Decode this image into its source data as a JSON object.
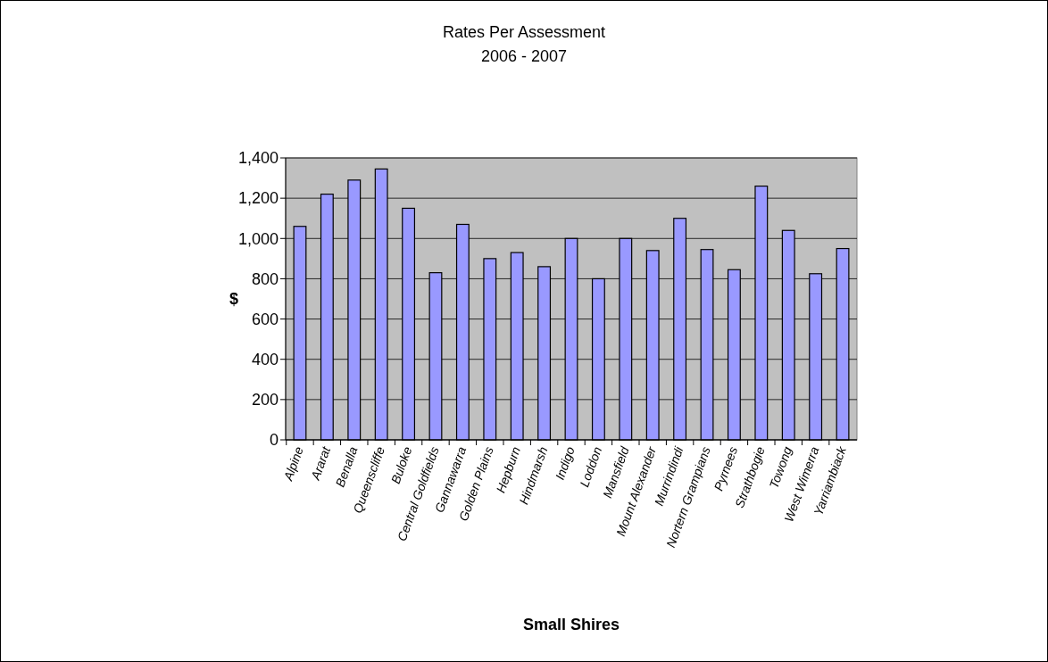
{
  "chart_data": {
    "type": "bar",
    "title": "Rates Per Assessment",
    "subtitle": "2006 - 2007",
    "xlabel": "Small Shires",
    "ylabel": "$",
    "categories": [
      "Alpine",
      "Ararat",
      "Benalla",
      "Queenscliffe",
      "Buloke",
      "Central Goldfields",
      "Gannawarra",
      "Golden Plains",
      "Hepburn",
      "Hindmarsh",
      "Indigo",
      "Loddon",
      "Mansfield",
      "Mount Alexander",
      "Murrindindi",
      "Nortern Grampians",
      "Pyrnees",
      "Strathbogie",
      "Towong",
      "West Wimerra",
      "Yarriambiack"
    ],
    "values": [
      1060,
      1220,
      1290,
      1345,
      1150,
      830,
      1070,
      900,
      930,
      860,
      1000,
      800,
      1000,
      940,
      1100,
      945,
      845,
      1260,
      1040,
      825,
      950
    ],
    "color": "#9999ff",
    "ylim": [
      0,
      1400
    ],
    "yticks": [
      {
        "value": 0,
        "label": "0"
      },
      {
        "value": 200,
        "label": "200"
      },
      {
        "value": 400,
        "label": "400"
      },
      {
        "value": 600,
        "label": "600"
      },
      {
        "value": 800,
        "label": "800"
      },
      {
        "value": 1000,
        "label": "1,000"
      },
      {
        "value": 1200,
        "label": "1,200"
      },
      {
        "value": 1400,
        "label": "1,400"
      }
    ],
    "grid": "y"
  }
}
